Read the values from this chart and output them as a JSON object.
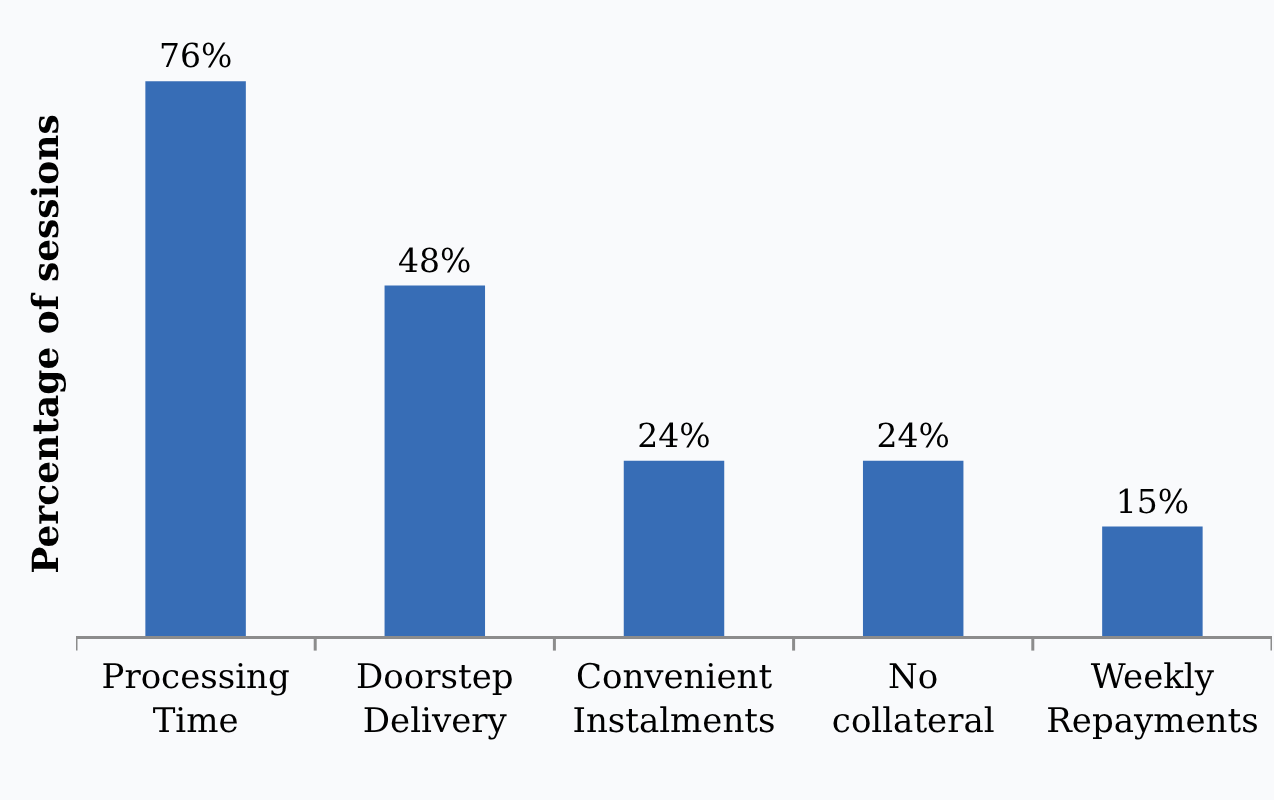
{
  "chart_data": {
    "type": "bar",
    "ylabel": "Percentage of sessions",
    "categories": [
      "Processing Time",
      "Doorstep Delivery",
      "Convenient Instalments",
      "No collateral",
      "Weekly Repayments"
    ],
    "values": [
      76,
      48,
      24,
      24,
      15
    ],
    "value_labels": [
      "76%",
      "48%",
      "24%",
      "24%",
      "15%"
    ],
    "color": "#376db6"
  }
}
